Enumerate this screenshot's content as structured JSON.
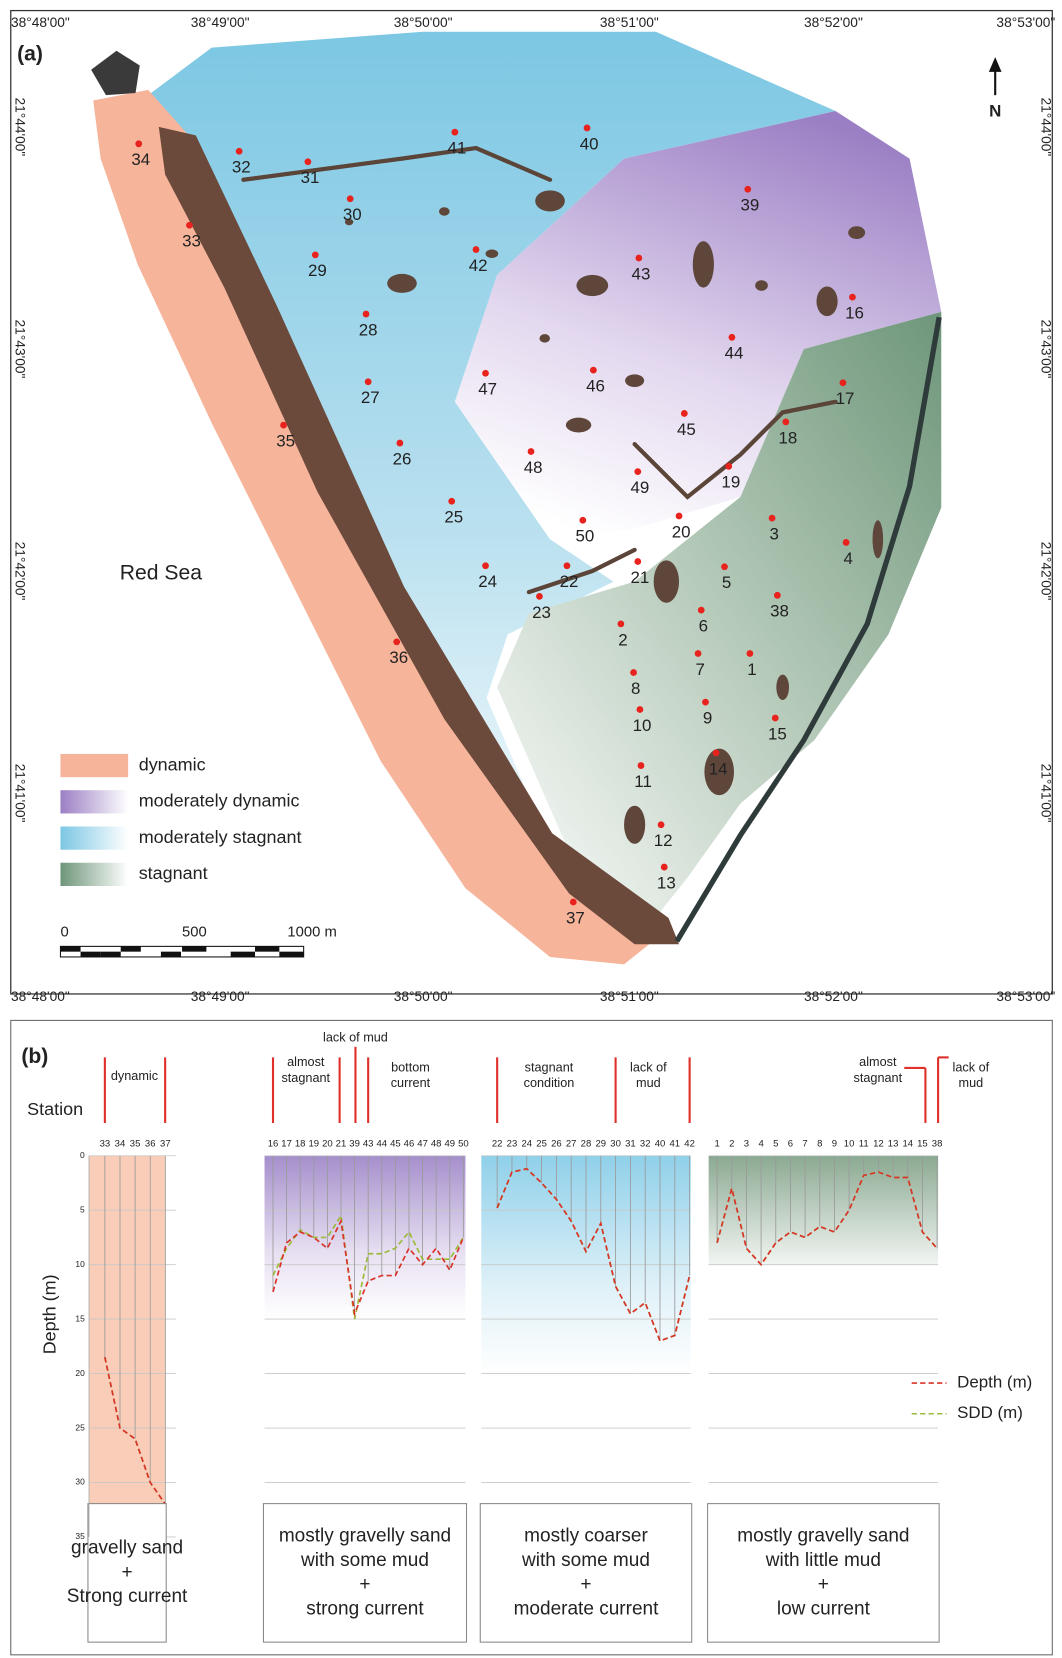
{
  "map": {
    "label": "(a)",
    "lon_labels": [
      "38°48'00\"",
      "38°49'00\"",
      "38°50'00\"",
      "38°51'00\"",
      "38°52'00\"",
      "38°53'00\""
    ],
    "lat_labels": [
      "21°44'00\"",
      "21°43'00\"",
      "21°42'00\"",
      "21°41'00\""
    ],
    "north": "N",
    "sea": "Red Sea",
    "legend": [
      {
        "name": "dynamic",
        "color": "#f6b49a"
      },
      {
        "name": "moderately dynamic",
        "color": "#9b7fc4"
      },
      {
        "name": "moderately stagnant",
        "color": "#7cc7e3"
      },
      {
        "name": "stagnant",
        "color": "#6e967a"
      }
    ],
    "scale_labels": [
      "0",
      "500",
      "1000 m"
    ],
    "stations": [
      "34",
      "32",
      "31",
      "41",
      "40",
      "39",
      "30",
      "33",
      "43",
      "42",
      "29",
      "16",
      "28",
      "44",
      "47",
      "46",
      "27",
      "17",
      "18",
      "45",
      "35",
      "26",
      "48",
      "19",
      "49",
      "20",
      "25",
      "50",
      "3",
      "4",
      "21",
      "24",
      "22",
      "5",
      "38",
      "23",
      "2",
      "6",
      "36",
      "7",
      "1",
      "8",
      "9",
      "10",
      "15",
      "14",
      "11",
      "12",
      "13",
      "37"
    ]
  },
  "chart_data": [
    {
      "type": "line",
      "label": "(b)",
      "x_label": "Station",
      "y_label": "Depth (m)",
      "categories": [
        "33",
        "34",
        "35",
        "36",
        "37"
      ],
      "series": [
        {
          "name": "Depth (m)",
          "color": "#d9342b",
          "values": [
            18.5,
            25,
            26,
            30,
            32
          ]
        },
        {
          "name": "SDD (m)",
          "color": "#9bbb3a",
          "values": [
            18.5,
            25,
            26,
            30,
            32
          ]
        }
      ],
      "ylim": [
        0,
        35
      ],
      "yticks": [
        0,
        5,
        10,
        15,
        20,
        25,
        30,
        35
      ],
      "annotations": [
        [
          "dynamic"
        ]
      ],
      "note": [
        "gravelly sand",
        "+",
        "Strong current"
      ]
    },
    {
      "type": "line",
      "categories": [
        "16",
        "17",
        "18",
        "19",
        "20",
        "21",
        "39",
        "43",
        "44",
        "45",
        "46",
        "47",
        "48",
        "49",
        "50"
      ],
      "series": [
        {
          "color": "#d9342b",
          "values": [
            12.5,
            8,
            7,
            7.5,
            8.5,
            6,
            14.5,
            11.5,
            11,
            11,
            8.5,
            10,
            8.5,
            10.5,
            7.5
          ]
        },
        {
          "color": "#9bbb3a",
          "values": [
            11,
            8.5,
            6.8,
            7.5,
            7.5,
            5.5,
            15,
            9,
            9,
            8.5,
            7,
            9.5,
            9.5,
            9.5,
            7.5
          ]
        }
      ],
      "ylim": [
        0,
        35
      ],
      "annotations": [
        [
          "almost",
          "stagnant"
        ],
        [
          "lack of mud"
        ],
        [
          "bottom",
          "current"
        ]
      ],
      "note": [
        "mostly gravelly sand",
        "with some mud",
        "+",
        "strong current"
      ]
    },
    {
      "type": "line",
      "categories": [
        "22",
        "23",
        "24",
        "25",
        "26",
        "27",
        "28",
        "29",
        "30",
        "31",
        "32",
        "40",
        "41",
        "42"
      ],
      "series": [
        {
          "color": "#d9342b",
          "values": [
            4.8,
            1.5,
            1.2,
            2.5,
            4,
            6,
            8.8,
            6.2,
            12,
            14.5,
            13.5,
            17,
            16.5,
            11
          ]
        },
        {
          "color": "#9bbb3a",
          "values": [
            4.8,
            1.5,
            1.2,
            2.5,
            4,
            6,
            8.8,
            6.2,
            12,
            14.5,
            13.5,
            17,
            16.5,
            11
          ]
        }
      ],
      "ylim": [
        0,
        35
      ],
      "annotations": [
        [
          "stagnant",
          "condition"
        ],
        [
          "lack of",
          "mud"
        ]
      ],
      "note": [
        "mostly coarser",
        "with some mud",
        "+",
        "moderate current"
      ]
    },
    {
      "type": "line",
      "categories": [
        "1",
        "2",
        "3",
        "4",
        "5",
        "6",
        "7",
        "8",
        "9",
        "10",
        "11",
        "12",
        "13",
        "14",
        "15",
        "38"
      ],
      "series": [
        {
          "color": "#d9342b",
          "values": [
            8,
            3,
            8.5,
            10,
            8,
            7,
            7.5,
            6.5,
            7,
            5,
            1.8,
            1.5,
            2,
            2,
            7,
            8.5
          ]
        },
        {
          "color": "#9bbb3a",
          "values": [
            8,
            3,
            8.5,
            10,
            8,
            7,
            7.5,
            6.5,
            7,
            5,
            1.8,
            1.5,
            2,
            2,
            7,
            8.5
          ]
        }
      ],
      "ylim": [
        0,
        35
      ],
      "annotations": [
        [
          "almost",
          "stagnant"
        ],
        [
          "lack of",
          "mud"
        ]
      ],
      "note": [
        "mostly gravelly sand",
        "with little mud",
        "+",
        "low current"
      ]
    }
  ]
}
